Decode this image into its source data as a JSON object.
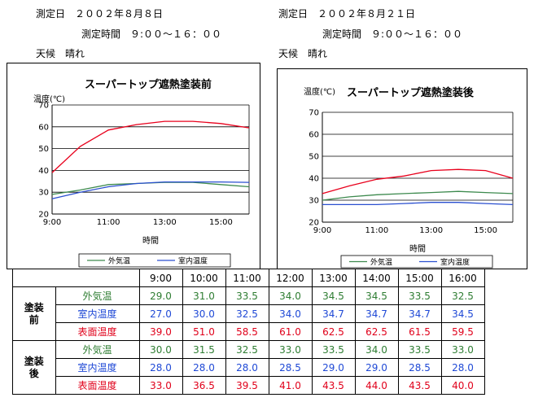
{
  "before": {
    "date_label": "測定日　２００２年８月８日",
    "time_label": "測定時間　９:００〜１６：００",
    "weather_label": "天候　晴れ"
  },
  "after": {
    "date_label": "測定日　２００２年８月２１日",
    "time_label": "測定時間　９:００〜１６：００",
    "weather_label": "天候　晴れ"
  },
  "chart_data": [
    {
      "type": "line",
      "title": "スーパートップ遮熱塗装前",
      "ylabel": "温度(℃)",
      "xlabel": "時間",
      "ylim": [
        20,
        70
      ],
      "yticks": [
        20,
        30,
        40,
        50,
        60,
        70
      ],
      "x": [
        "9:00",
        "10:00",
        "11:00",
        "12:00",
        "13:00",
        "14:00",
        "15:00",
        "16:00"
      ],
      "xtick_labels": [
        "9:00",
        "11:00",
        "13:00",
        "15:00"
      ],
      "grid": true,
      "legend_position": "bottom",
      "series": [
        {
          "name": "外気温",
          "color": "#3d8a4e",
          "values": [
            29.0,
            31.0,
            33.5,
            34.0,
            34.5,
            34.5,
            33.5,
            32.5
          ]
        },
        {
          "name": "室内温度",
          "color": "#2a4fd0",
          "values": [
            27.0,
            30.0,
            32.5,
            34.0,
            34.7,
            34.7,
            34.7,
            34.5
          ]
        },
        {
          "color": "#e8001c",
          "values": [
            39.0,
            51.0,
            58.5,
            61.0,
            62.5,
            62.5,
            61.5,
            59.5
          ]
        }
      ]
    },
    {
      "type": "line",
      "title": "スーパートップ遮熱塗装後",
      "ylabel": "温度(℃)",
      "xlabel": "時間",
      "ylim": [
        20,
        70
      ],
      "yticks": [
        20,
        30,
        40,
        50,
        60,
        70
      ],
      "x": [
        "9:00",
        "10:00",
        "11:00",
        "12:00",
        "13:00",
        "14:00",
        "15:00",
        "16:00"
      ],
      "xtick_labels": [
        "9:00",
        "11:00",
        "13:00",
        "15:00"
      ],
      "grid": true,
      "legend_position": "bottom",
      "series": [
        {
          "name": "外気温",
          "color": "#3d8a4e",
          "values": [
            30.0,
            31.5,
            32.5,
            33.0,
            33.5,
            34.0,
            33.5,
            33.0
          ]
        },
        {
          "name": "室内温度",
          "color": "#2a4fd0",
          "values": [
            28.0,
            28.0,
            28.0,
            28.5,
            29.0,
            29.0,
            28.5,
            28.0
          ]
        },
        {
          "color": "#e8001c",
          "values": [
            33.0,
            36.5,
            39.5,
            41.0,
            43.5,
            44.0,
            43.5,
            40.0
          ]
        }
      ]
    }
  ],
  "table": {
    "columns": [
      "9:00",
      "10:00",
      "11:00",
      "12:00",
      "13:00",
      "14:00",
      "15:00",
      "16:00"
    ],
    "groups": [
      {
        "label": "塗装前",
        "rows": [
          {
            "label": "外気温",
            "values": [
              "29.0",
              "31.0",
              "33.5",
              "34.0",
              "34.5",
              "34.5",
              "33.5",
              "32.5"
            ]
          },
          {
            "label": "室内温度",
            "values": [
              "27.0",
              "30.0",
              "32.5",
              "34.0",
              "34.7",
              "34.7",
              "34.7",
              "34.5"
            ]
          },
          {
            "label": "表面温度",
            "values": [
              "39.0",
              "51.0",
              "58.5",
              "61.0",
              "62.5",
              "62.5",
              "61.5",
              "59.5"
            ]
          }
        ]
      },
      {
        "label": "塗装後",
        "rows": [
          {
            "label": "外気温",
            "values": [
              "30.0",
              "31.5",
              "32.5",
              "33.0",
              "33.5",
              "34.0",
              "33.5",
              "33.0"
            ]
          },
          {
            "label": "室内温度",
            "values": [
              "28.0",
              "28.0",
              "28.0",
              "28.5",
              "29.0",
              "29.0",
              "28.5",
              "28.0"
            ]
          },
          {
            "label": "表面温度",
            "values": [
              "33.0",
              "36.5",
              "39.5",
              "41.0",
              "43.5",
              "44.0",
              "43.5",
              "40.0"
            ]
          }
        ]
      }
    ]
  }
}
